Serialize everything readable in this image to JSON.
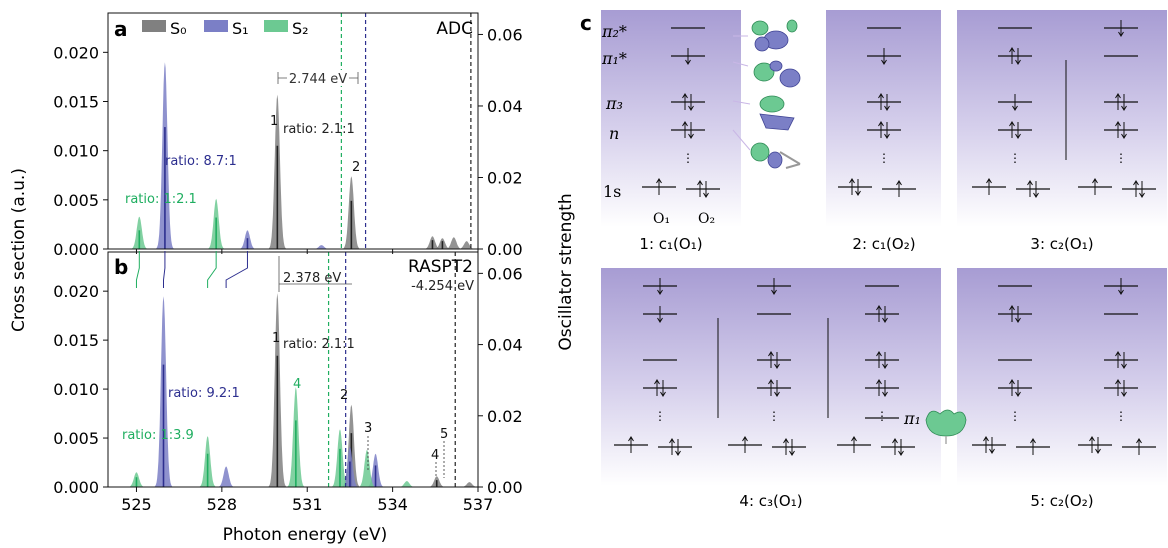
{
  "panel_letters": {
    "a": "a",
    "b": "b",
    "c": "c"
  },
  "colors": {
    "s0": "#808080",
    "s1": "#7b7fc6",
    "s2": "#6cc992",
    "s0_line": "#222222",
    "s1_line": "#2d2f8f",
    "s2_line": "#1fae60",
    "panel_bg": "#b3aad8"
  },
  "legend": {
    "s0": "S₀",
    "s1": "S₁",
    "s2": "S₂"
  },
  "chart_data": [
    {
      "panel": "a",
      "type": "area",
      "method_label": "ADC",
      "xlim": [
        524,
        537
      ],
      "ylim": [
        0,
        0.024
      ],
      "ylim_right": [
        0,
        0.066
      ],
      "y_ticks": [
        "0.000",
        "0.005",
        "0.010",
        "0.015",
        "0.020"
      ],
      "y_ticks_right": [
        "0.00",
        "0.02",
        "0.04",
        "0.06"
      ],
      "ylabel": "Cross section (a.u.)",
      "ylabel_right": "Oscillator strength",
      "series": [
        {
          "name": "S₀",
          "peaks": [
            [
              529.95,
              0.0157
            ],
            [
              532.55,
              0.0074
            ],
            [
              535.4,
              0.0013
            ],
            [
              535.75,
              0.0011
            ],
            [
              536.15,
              0.0012
            ],
            [
              536.6,
              0.0008
            ]
          ],
          "sticks": [
            [
              529.95,
              0.0105
            ],
            [
              532.55,
              0.0049
            ],
            [
              535.4,
              0.0009
            ],
            [
              535.75,
              0.0008
            ]
          ]
        },
        {
          "name": "S₁",
          "peaks": [
            [
              526.0,
              0.019
            ],
            [
              528.9,
              0.0019
            ],
            [
              531.5,
              0.0004
            ]
          ],
          "sticks": [
            [
              526.0,
              0.0124
            ],
            [
              528.9,
              0.0011
            ]
          ]
        },
        {
          "name": "S₂",
          "peaks": [
            [
              525.1,
              0.0033
            ],
            [
              527.8,
              0.0051
            ]
          ],
          "sticks": [
            [
              525.1,
              0.0019
            ],
            [
              527.8,
              0.0032
            ]
          ]
        }
      ],
      "vlines": [
        {
          "x": 532.2,
          "series": "S₂"
        },
        {
          "x": 533.05,
          "series": "S₁"
        },
        {
          "x": 536.75,
          "series": "S₀"
        }
      ],
      "annotations": {
        "gap": "2.744 eV",
        "ratio_s0": "ratio: 2.1:1",
        "ratio_s1": "ratio: 8.7:1",
        "ratio_s2": "ratio:  1:2.1",
        "label_1": "1",
        "label_2": "2"
      }
    },
    {
      "panel": "b",
      "type": "area",
      "method_label": "RASPT2",
      "xlim": [
        524,
        537
      ],
      "ylim": [
        0,
        0.024
      ],
      "ylim_right": [
        0,
        0.066
      ],
      "x_ticks": [
        "525",
        "528",
        "531",
        "534",
        "537"
      ],
      "xlabel": "Photon energy (eV)",
      "series": [
        {
          "name": "S₀",
          "peaks": [
            [
              529.95,
              0.0198
            ],
            [
              532.55,
              0.0084
            ],
            [
              535.55,
              0.0011
            ],
            [
              536.7,
              0.0005
            ]
          ],
          "sticks": [
            [
              529.95,
              0.0134
            ],
            [
              532.55,
              0.0055
            ],
            [
              535.55,
              0.0007
            ]
          ]
        },
        {
          "name": "S₁",
          "peaks": [
            [
              525.95,
              0.0195
            ],
            [
              528.15,
              0.0021
            ],
            [
              532.5,
              0.0041
            ],
            [
              533.4,
              0.0034
            ]
          ],
          "sticks": [
            [
              525.95,
              0.0125
            ],
            [
              532.5,
              0.0026
            ],
            [
              533.4,
              0.0022
            ]
          ]
        },
        {
          "name": "S₂",
          "peaks": [
            [
              525.0,
              0.0015
            ],
            [
              527.5,
              0.0052
            ],
            [
              530.6,
              0.0102
            ],
            [
              532.15,
              0.0059
            ],
            [
              533.1,
              0.0038
            ],
            [
              534.5,
              0.0006
            ]
          ],
          "sticks": [
            [
              525.0,
              0.001
            ],
            [
              527.5,
              0.0034
            ],
            [
              530.6,
              0.0068
            ],
            [
              532.15,
              0.0039
            ]
          ]
        }
      ],
      "vlines": [
        {
          "x": 531.75,
          "series": "S₂"
        },
        {
          "x": 532.35,
          "series": "S₁"
        },
        {
          "x": 536.2,
          "series": "S₀"
        }
      ],
      "annotations": {
        "gap": "2.378 eV",
        "shift": "-4.254 eV",
        "ratio_s0": "ratio: 2.1:1",
        "ratio_s1": "ratio: 9.2:1",
        "ratio_s2": "ratio:  1:3.9",
        "label_1": "1",
        "label_2": "2",
        "label_3": "3",
        "label_4g": "4",
        "label_4": "4",
        "label_5": "5"
      }
    }
  ],
  "panel_c": {
    "orbital_labels": {
      "pi2": "π₂*",
      "pi1": "π₁*",
      "pi3": "π₃",
      "n": "n",
      "s1": "1s",
      "o1": "O₁",
      "o2": "O₂",
      "pi1_inset": "π₁"
    },
    "captions": [
      "1: c₁(O₁)",
      "2: c₁(O₂)",
      "3: c₂(O₁)",
      "4: c₃(O₁)",
      "5: c₂(O₂)"
    ],
    "dots": "⋮"
  }
}
